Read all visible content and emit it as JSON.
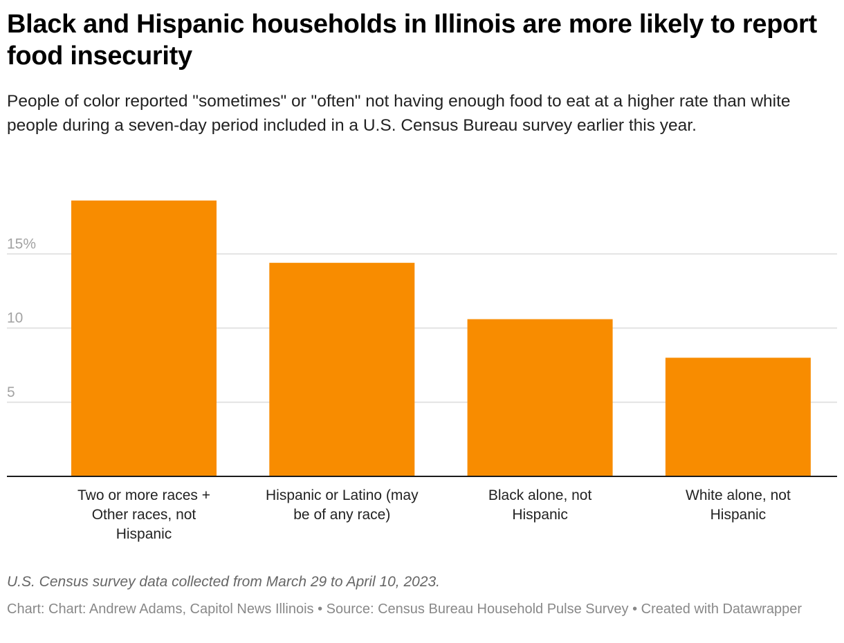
{
  "chart_data": {
    "type": "bar",
    "title": "Black and Hispanic households in Illinois are more likely to report food insecurity",
    "subtitle": "People of color reported \"sometimes\" or \"often\" not having enough food to eat at a higher rate than white people during a seven-day period included in a U.S. Census Bureau survey earlier this year.",
    "categories": [
      [
        "Two or more races +",
        "Other races, not",
        "Hispanic"
      ],
      [
        "Hispanic or Latino (may",
        "be of any race)"
      ],
      [
        "Black alone, not",
        "Hispanic"
      ],
      [
        "White alone, not",
        "Hispanic"
      ]
    ],
    "values": [
      18.6,
      14.4,
      10.6,
      8.0
    ],
    "yticks": [
      {
        "value": 5,
        "label": "5"
      },
      {
        "value": 10,
        "label": "10"
      },
      {
        "value": 15,
        "label": "15%"
      }
    ],
    "ylim": [
      0,
      18.6
    ],
    "grid": true,
    "bar_color": "#f88c00",
    "xlabel": "",
    "ylabel": ""
  },
  "notes": "U.S. Census survey data collected from March 29 to April 10, 2023.",
  "byline": "Chart: Chart: Andrew Adams, Capitol News Illinois • Source: Census Bureau Household Pulse Survey • Created with Datawrapper"
}
